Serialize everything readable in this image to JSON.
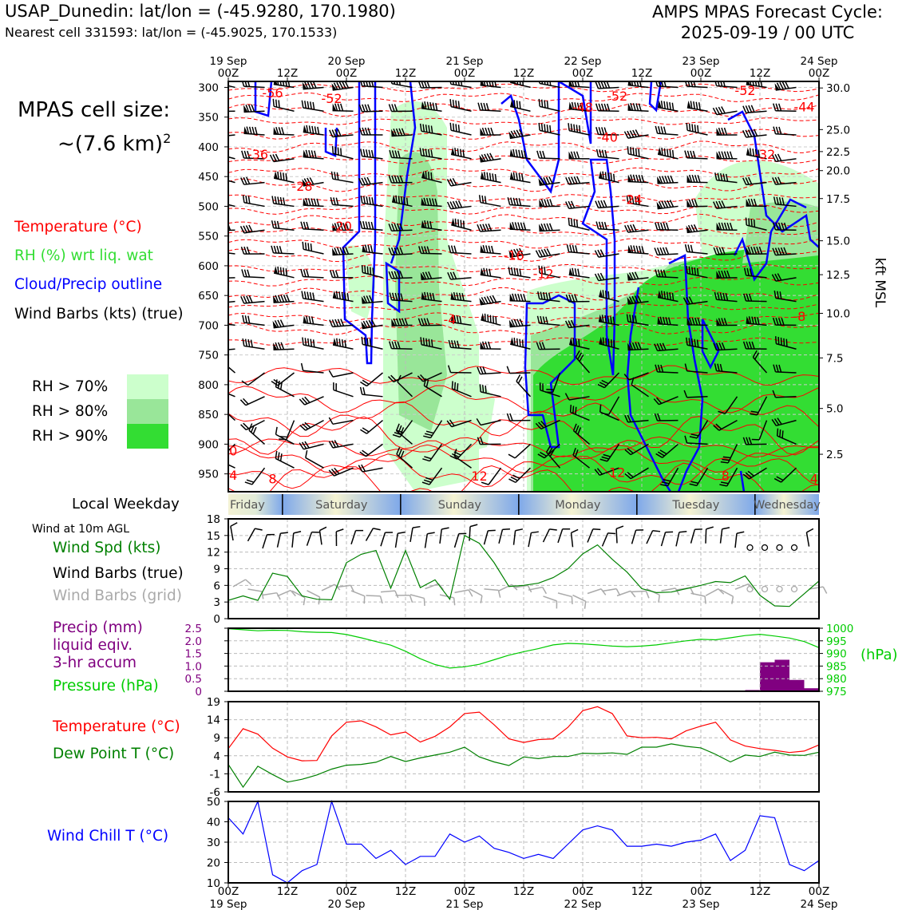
{
  "header": {
    "station_title": "USAP_Dunedin: lat/lon = (-45.9280, 170.1980)",
    "nearest_cell": "Nearest cell 331593: lat/lon = (-45.9025, 170.1533)",
    "forecast_title": "AMPS MPAS Forecast Cycle:",
    "forecast_cycle": "2025-09-19 / 00 UTC",
    "cell_size_line1": "MPAS cell size:",
    "cell_size_line2": "~(7.6 km)",
    "cell_size_exp": "2"
  },
  "legend": {
    "temperature": "Temperature (°C)",
    "rh": "RH (%) wrt liq. wat",
    "cloud": "Cloud/Precip outline",
    "wind": "Wind Barbs (kts) (true)",
    "rh70": "RH > 70%",
    "rh80": "RH > 80%",
    "rh90": "RH > 90%",
    "colors": {
      "temperature": "#ff0000",
      "rh": "#33cc33",
      "cloud": "#0000ff",
      "wind": "#000000",
      "rh70": "#ccffcc",
      "rh80": "#99e699",
      "rh90": "#33dd33"
    }
  },
  "weekday_strip": {
    "label": "Local Weekday",
    "days": [
      "Friday",
      "Saturday",
      "Sunday",
      "Monday",
      "Tuesday",
      "Wednesday"
    ]
  },
  "left_labels": {
    "wind10m": "Wind at 10m AGL",
    "wind_spd": "Wind Spd (kts)",
    "wind_barbs_true": "Wind Barbs (true)",
    "wind_barbs_grid": "Wind Barbs (grid)",
    "precip1": "Precip (mm)",
    "precip2": "liquid eqiv.",
    "precip3": "3-hr accum",
    "pressure": "Pressure (hPa)",
    "temperature": "Temperature (°C)",
    "dewpoint": "Dew Point T (°C)",
    "windchill": "Wind Chill T (°C)"
  },
  "chart_data": [
    {
      "type": "heatmap",
      "subtype": "time-height cross section",
      "x_top_ticks": [
        "19 Sep\n00Z",
        "12Z",
        "20 Sep\n00Z",
        "12Z",
        "21 Sep\n00Z",
        "12Z",
        "22 Sep\n00Z",
        "12Z",
        "23 Sep\n00Z",
        "12Z",
        "24 Sep\n00Z"
      ],
      "x_hours": [
        0,
        12,
        24,
        36,
        48,
        60,
        72,
        84,
        96,
        108,
        120
      ],
      "y_left_ticks": [
        300,
        350,
        400,
        450,
        500,
        550,
        600,
        650,
        700,
        750,
        800,
        850,
        900,
        950
      ],
      "y_left_range": [
        980,
        290
      ],
      "y_right_label": "kft MSL",
      "y_right_ticks": [
        {
          "label": "30.0",
          "p": 301
        },
        {
          "label": "25.0",
          "p": 371
        },
        {
          "label": "22.5",
          "p": 408
        },
        {
          "label": "20.0",
          "p": 440
        },
        {
          "label": "17.5",
          "p": 487
        },
        {
          "label": "15.0",
          "p": 558
        },
        {
          "label": "12.5",
          "p": 615
        },
        {
          "label": "10.0",
          "p": 680
        },
        {
          "label": "7.5",
          "p": 755
        },
        {
          "label": "5.0",
          "p": 840
        },
        {
          "label": "2.5",
          "p": 917
        }
      ],
      "temperature_labels": [
        {
          "text": "-56",
          "t": 9,
          "p": 309
        },
        {
          "text": "-52",
          "t": 21,
          "p": 318
        },
        {
          "text": "-52",
          "t": 79,
          "p": 314
        },
        {
          "text": "-52",
          "t": 105,
          "p": 305
        },
        {
          "text": "-48",
          "t": 72,
          "p": 333
        },
        {
          "text": "-44",
          "t": 117,
          "p": 332
        },
        {
          "text": "-40",
          "t": 77,
          "p": 383
        },
        {
          "text": "-36",
          "t": 6,
          "p": 412
        },
        {
          "text": "-32",
          "t": 109,
          "p": 412
        },
        {
          "text": "-28",
          "t": 15,
          "p": 466
        },
        {
          "text": "-24",
          "t": 82,
          "p": 488
        },
        {
          "text": "-20",
          "t": 23,
          "p": 533
        },
        {
          "text": "-16",
          "t": 58,
          "p": 582
        },
        {
          "text": "-12",
          "t": 64,
          "p": 613
        },
        {
          "text": "-4",
          "t": 45,
          "p": 690
        },
        {
          "text": "-8",
          "t": 116,
          "p": 685
        },
        {
          "text": "0",
          "t": 1,
          "p": 911
        },
        {
          "text": "4",
          "t": 1,
          "p": 952
        },
        {
          "text": "8",
          "t": 9,
          "p": 958
        },
        {
          "text": "12",
          "t": 51,
          "p": 953
        },
        {
          "text": "12",
          "t": 79,
          "p": 947
        },
        {
          "text": "8",
          "t": 101,
          "p": 953
        },
        {
          "text": "4",
          "t": 119,
          "p": 958
        }
      ]
    },
    {
      "type": "line",
      "name_panel": "Wind Spd (kts)",
      "x_hours": [
        0,
        3,
        6,
        9,
        12,
        15,
        18,
        21,
        24,
        27,
        30,
        33,
        36,
        39,
        42,
        45,
        48,
        51,
        54,
        57,
        60,
        63,
        66,
        69,
        72,
        75,
        78,
        81,
        84,
        87,
        90,
        93,
        96,
        99,
        102,
        105,
        108,
        111,
        114,
        117,
        120
      ],
      "values": [
        3.3,
        4.1,
        3.3,
        8.2,
        7.6,
        4.1,
        3.5,
        3.4,
        10.1,
        11.6,
        12.3,
        5.5,
        12.3,
        5.6,
        7.0,
        3.5,
        15.0,
        13.6,
        10.1,
        5.8,
        6.0,
        6.4,
        7.4,
        9.0,
        11.7,
        13.3,
        10.7,
        8.4,
        5.4,
        4.7,
        4.8,
        5.4,
        6.0,
        6.7,
        6.5,
        7.7,
        4.2,
        2.3,
        2.2,
        4.5,
        6.8
      ],
      "ylim": [
        0,
        18
      ],
      "yticks": [
        0,
        3,
        6,
        9,
        12,
        15,
        18
      ]
    },
    {
      "type": "line",
      "name_panel": "Pressure (hPa)",
      "x_hours": [
        0,
        3,
        6,
        9,
        12,
        15,
        18,
        21,
        24,
        27,
        30,
        33,
        36,
        39,
        42,
        45,
        48,
        51,
        54,
        57,
        60,
        63,
        66,
        69,
        72,
        75,
        78,
        81,
        84,
        87,
        90,
        93,
        96,
        99,
        102,
        105,
        108,
        111,
        114,
        117,
        120
      ],
      "values": [
        999.8,
        999.4,
        999.0,
        999.2,
        999.1,
        998.6,
        998.4,
        998.3,
        997.5,
        996.2,
        994.7,
        993.3,
        990.9,
        987.9,
        985.6,
        984.2,
        984.7,
        985.7,
        987.5,
        989.3,
        990.7,
        991.9,
        993.4,
        994.0,
        993.8,
        993.4,
        992.9,
        992.7,
        992.9,
        993.4,
        994.2,
        995.0,
        995.6,
        995.4,
        996.2,
        997.1,
        997.6,
        996.9,
        996.1,
        994.7,
        992.3
      ],
      "ylim": [
        975,
        1000
      ],
      "yticks": [
        975,
        980,
        985,
        990,
        995,
        1000
      ],
      "precip_bars": {
        "x_hours": [
          84,
          105,
          108,
          111,
          114,
          117
        ],
        "values": [
          0.03,
          0.05,
          1.15,
          1.25,
          0.45,
          0.12
        ]
      },
      "precip_ylim": [
        0,
        2.5
      ],
      "precip_yticks": [
        0,
        0.5,
        1.0,
        1.5,
        2.0,
        2.5
      ],
      "ylabel_right": "(hPa)"
    },
    {
      "type": "line",
      "name_panel": "Temperature / Dew Point",
      "x_hours": [
        0,
        3,
        6,
        9,
        12,
        15,
        18,
        21,
        24,
        27,
        30,
        33,
        36,
        39,
        42,
        45,
        48,
        51,
        54,
        57,
        60,
        63,
        66,
        69,
        72,
        75,
        78,
        81,
        84,
        87,
        90,
        93,
        96,
        99,
        102,
        105,
        108,
        111,
        114,
        117,
        120
      ],
      "series": [
        {
          "values": [
            6.0,
            11.5,
            10.0,
            6.1,
            3.7,
            2.6,
            2.7,
            9.5,
            13.3,
            13.7,
            12.0,
            9.8,
            10.6,
            7.8,
            9.4,
            12.0,
            15.7,
            16.1,
            12.6,
            8.7,
            7.7,
            8.5,
            8.7,
            11.9,
            16.5,
            17.6,
            15.7,
            9.5,
            9.0,
            9.1,
            8.7,
            10.9,
            12.2,
            13.3,
            8.4,
            6.7,
            6.0,
            5.5,
            4.9,
            5.3,
            7.0
          ]
        },
        {
          "values": [
            1.6,
            -4.7,
            1.1,
            -1.2,
            -3.3,
            -2.5,
            -1.3,
            0.3,
            1.4,
            1.6,
            2.2,
            3.8,
            2.4,
            3.4,
            4.2,
            5.0,
            6.4,
            3.7,
            2.3,
            1.3,
            3.7,
            3.2,
            3.8,
            3.8,
            4.7,
            4.6,
            4.8,
            4.4,
            6.4,
            6.4,
            7.3,
            6.6,
            6.2,
            4.4,
            2.3,
            4.2,
            3.8,
            5.0,
            4.2,
            4.1,
            5.0
          ]
        }
      ],
      "ylim": [
        -6,
        19
      ],
      "yticks": [
        -6,
        -1,
        4,
        9,
        14,
        19
      ]
    },
    {
      "type": "line",
      "name_panel": "Wind Chill T (°C)",
      "x_hours": [
        0,
        3,
        6,
        9,
        12,
        15,
        18,
        21,
        24,
        27,
        30,
        33,
        36,
        39,
        42,
        45,
        48,
        51,
        54,
        57,
        60,
        63,
        66,
        69,
        72,
        75,
        78,
        81,
        84,
        87,
        90,
        93,
        96,
        99,
        102,
        105,
        108,
        111,
        114,
        117,
        120
      ],
      "values": [
        42,
        34,
        50,
        14,
        10,
        16,
        19,
        50,
        29,
        29,
        22,
        26,
        19,
        23,
        23,
        34,
        30,
        33,
        27,
        25,
        22,
        24,
        22,
        29,
        36,
        38,
        36,
        28,
        28,
        29,
        28,
        30,
        31,
        34,
        21,
        26,
        43,
        42,
        19,
        16,
        21
      ],
      "ylim": [
        10,
        50
      ],
      "yticks": [
        10,
        20,
        30,
        40,
        50
      ],
      "x_bottom_ticks": [
        "00Z\n19 Sep",
        "12Z",
        "00Z\n20 Sep",
        "12Z",
        "00Z\n21 Sep",
        "12Z",
        "00Z\n22 Sep",
        "12Z",
        "00Z\n23 Sep",
        "12Z",
        "00Z\n24 Sep"
      ]
    }
  ]
}
